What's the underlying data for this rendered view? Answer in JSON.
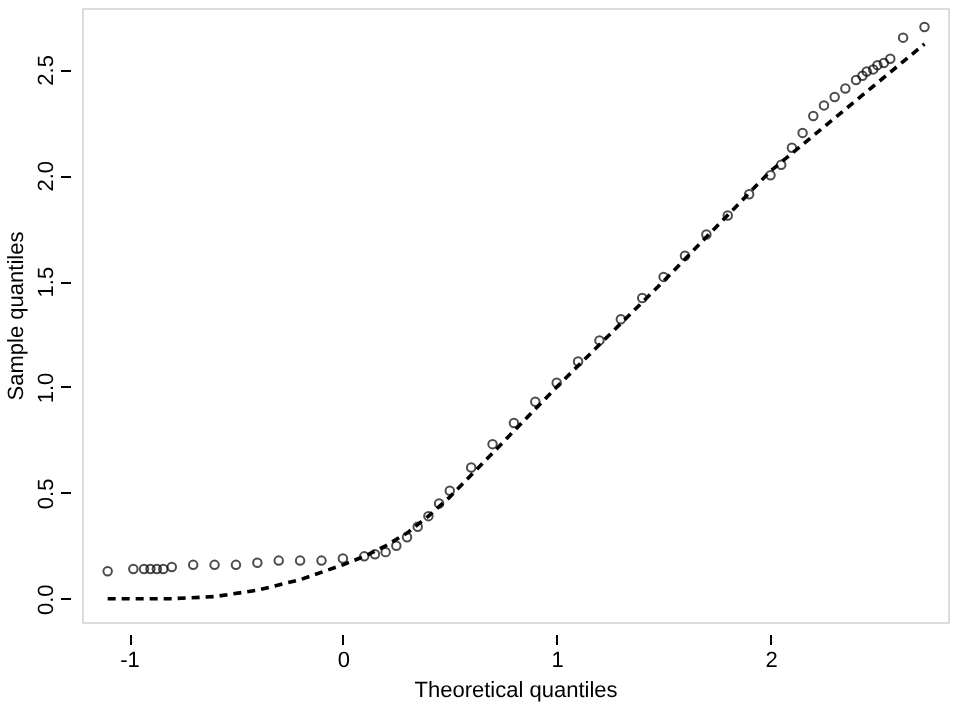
{
  "chart_data": {
    "type": "scatter",
    "xlabel": "Theoretical quantiles",
    "ylabel": "Sample quantiles",
    "xlim": [
      -1.22,
      2.83
    ],
    "ylim": [
      -0.11,
      2.79
    ],
    "xticks": [
      -1,
      0,
      1,
      2
    ],
    "yticks": [
      {
        "value": 0,
        "label": "0.0"
      },
      {
        "value": 0.5,
        "label": "0.5"
      },
      {
        "value": 1,
        "label": "1.0"
      },
      {
        "value": 1.5,
        "label": "1.5"
      },
      {
        "value": 2,
        "label": "2.0"
      },
      {
        "value": 2.5,
        "label": "2.5"
      }
    ],
    "grid": false,
    "series": [
      {
        "marker": "circle",
        "color": "#000000",
        "x": [
          -1.1,
          -0.98,
          -0.93,
          -0.9,
          -0.87,
          -0.84,
          -0.8,
          -0.7,
          -0.6,
          -0.5,
          -0.4,
          -0.3,
          -0.2,
          -0.1,
          0,
          0.1,
          0.15,
          0.2,
          0.25,
          0.3,
          0.35,
          0.4,
          0.45,
          0.5,
          0.6,
          0.7,
          0.8,
          0.9,
          1.0,
          1.1,
          1.2,
          1.3,
          1.4,
          1.5,
          1.6,
          1.7,
          1.8,
          1.9,
          2.0,
          2.05,
          2.1,
          2.15,
          2.2,
          2.25,
          2.3,
          2.35,
          2.4,
          2.43,
          2.45,
          2.48,
          2.5,
          2.53,
          2.56,
          2.62,
          2.72
        ],
        "values": [
          0.13,
          0.14,
          0.14,
          0.14,
          0.14,
          0.14,
          0.15,
          0.16,
          0.16,
          0.16,
          0.17,
          0.18,
          0.18,
          0.18,
          0.19,
          0.2,
          0.21,
          0.22,
          0.25,
          0.29,
          0.34,
          0.39,
          0.45,
          0.51,
          0.62,
          0.73,
          0.83,
          0.93,
          1.02,
          1.12,
          1.22,
          1.32,
          1.42,
          1.52,
          1.62,
          1.72,
          1.81,
          1.91,
          2.0,
          2.05,
          2.13,
          2.2,
          2.28,
          2.33,
          2.37,
          2.41,
          2.45,
          2.47,
          2.49,
          2.5,
          2.52,
          2.53,
          2.55,
          2.65,
          2.7
        ]
      },
      {
        "type": "line",
        "line_style": "dashed",
        "color": "#000000",
        "x": [
          -1.1,
          -0.8,
          -0.6,
          -0.4,
          -0.2,
          0,
          0.1,
          0.2,
          0.3,
          0.4,
          0.5,
          1,
          1.5,
          2,
          2.72
        ],
        "values": [
          0,
          0,
          0.01,
          0.04,
          0.09,
          0.16,
          0.2,
          0.25,
          0.31,
          0.39,
          0.48,
          1.0,
          1.5,
          2.02,
          2.62
        ]
      }
    ]
  }
}
